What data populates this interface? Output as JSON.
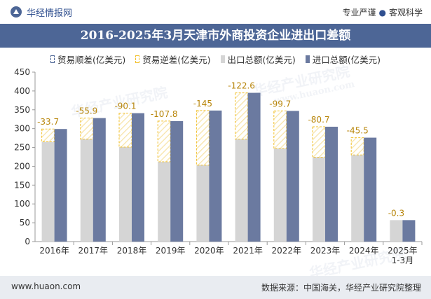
{
  "header": {
    "brand": "华经情报网",
    "tagline_left": "专业严谨",
    "tagline_right": "客观科学"
  },
  "watermark": {
    "cn": "华经产业研究院",
    "url": "www.huaon.com"
  },
  "footer": {
    "url": "www.huaon.com",
    "source": "数据来源：中国海关，华经产业研究院整理"
  },
  "colors": {
    "title_bg": "#4d6696",
    "export": "#d5d5d5",
    "import": "#6b7aa0",
    "surplus": "#4d6696",
    "deficit": "#f2c12e"
  },
  "chart_data": {
    "type": "bar",
    "title": "2016-2025年3月天津市外商投资企业进出口差额",
    "legend_position": "top",
    "grid": false,
    "categories": [
      "2016年",
      "2017年",
      "2018年",
      "2019年",
      "2020年",
      "2021年",
      "2022年",
      "2023年",
      "2024年",
      "2025年\n1-3月"
    ],
    "ylim": [
      0,
      450
    ],
    "yticks": [
      0,
      50,
      100,
      150,
      200,
      250,
      300,
      350,
      400,
      450
    ],
    "series": [
      {
        "name": "贸易顺差(亿美元)",
        "values": [
          null,
          null,
          null,
          null,
          null,
          null,
          null,
          null,
          null,
          null
        ]
      },
      {
        "name": "贸易逆差(亿美元)",
        "values": [
          -33.7,
          -55.9,
          -90.1,
          -107.8,
          -145,
          -122.6,
          -99.7,
          -80.7,
          -45.5,
          -0.3
        ]
      },
      {
        "name": "出口总额(亿美元)",
        "values": [
          265,
          272,
          251,
          212,
          203,
          272,
          247,
          224,
          230,
          57
        ]
      },
      {
        "name": "进口总额(亿美元)",
        "values": [
          299,
          328,
          341,
          320,
          348,
          395,
          347,
          305,
          276,
          57
        ]
      }
    ],
    "data_labels": [
      "-33.7",
      "-55.9",
      "-90.1",
      "-107.8",
      "-145",
      "-122.6",
      "-99.7",
      "-80.7",
      "-45.5",
      "-0.3"
    ]
  }
}
